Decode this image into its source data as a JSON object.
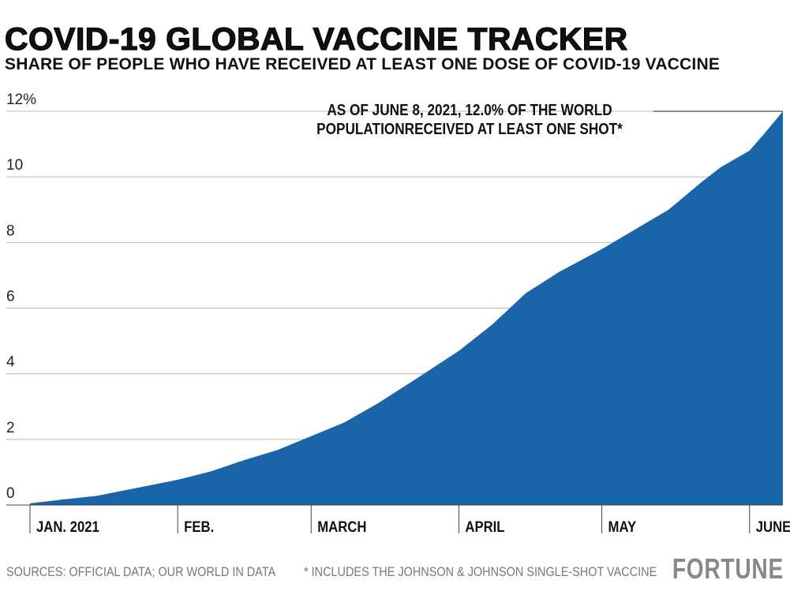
{
  "chart_data": {
    "type": "area",
    "title": "COVID-19 GLOBAL VACCINE TRACKER",
    "subtitle": "SHARE OF PEOPLE WHO HAVE RECEIVED AT LEAST ONE DOSE OF COVID-19 VACCINE",
    "xlabel": "",
    "ylabel": "",
    "ylim": [
      0,
      12
    ],
    "xlim": [
      "2021-01-01",
      "2021-06-08"
    ],
    "grid": true,
    "y_ticks": [
      "0",
      "2",
      "4",
      "6",
      "8",
      "10",
      "12%"
    ],
    "y_tick_values": [
      0,
      2,
      4,
      6,
      8,
      10,
      12
    ],
    "x_ticks": [
      {
        "label": "JAN. 2021",
        "date": "2021-01-01"
      },
      {
        "label": "FEB.",
        "date": "2021-02-01"
      },
      {
        "label": "MARCH",
        "date": "2021-03-01"
      },
      {
        "label": "APRIL",
        "date": "2021-04-01"
      },
      {
        "label": "MAY",
        "date": "2021-05-01"
      },
      {
        "label": "JUNE",
        "date": "2021-06-01"
      }
    ],
    "color": "#1a64aa",
    "series": [
      {
        "x": [
          "2021-01-01",
          "2021-01-08",
          "2021-01-15",
          "2021-01-22",
          "2021-02-01",
          "2021-02-08",
          "2021-02-15",
          "2021-02-22",
          "2021-03-01",
          "2021-03-08",
          "2021-03-15",
          "2021-03-22",
          "2021-04-01",
          "2021-04-08",
          "2021-04-15",
          "2021-04-22",
          "2021-05-01",
          "2021-05-08",
          "2021-05-15",
          "2021-05-22",
          "2021-05-26",
          "2021-06-01",
          "2021-06-04",
          "2021-06-08"
        ],
        "values": [
          0.05,
          0.17,
          0.28,
          0.48,
          0.77,
          1.03,
          1.37,
          1.68,
          2.1,
          2.52,
          3.1,
          3.75,
          4.7,
          5.5,
          6.45,
          7.1,
          7.8,
          8.4,
          9.0,
          9.85,
          10.3,
          10.8,
          11.3,
          12.0
        ]
      }
    ],
    "annotation": [
      "AS OF JUNE 8, 2021, 12.0% OF THE WORLD",
      "POPULATIONRECEIVED AT LEAST ONE SHOT*"
    ]
  },
  "footer": {
    "sources": "SOURCES: OFFICIAL DATA; OUR WORLD IN DATA",
    "note": "* INCLUDES THE JOHNSON & JOHNSON SINGLE-SHOT VACCINE",
    "logo": "FORTUNE"
  }
}
